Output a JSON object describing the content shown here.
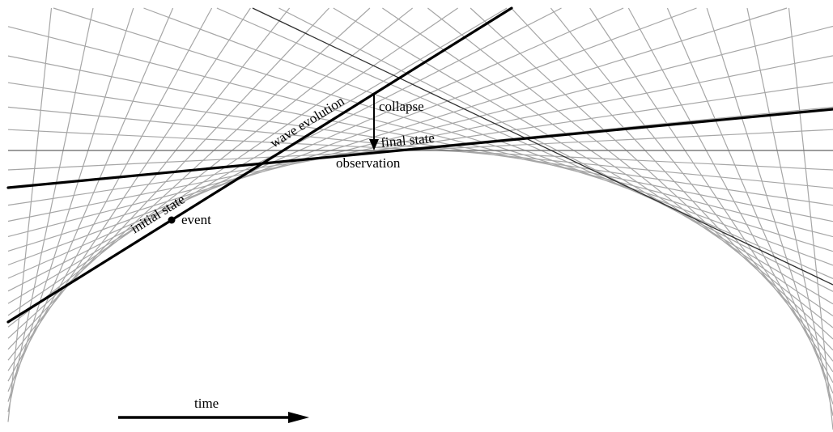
{
  "labels": {
    "wave_evolution": "wave evolution",
    "collapse": "collapse",
    "final_state": "final state",
    "observation": "observation",
    "initial_state": "initial state",
    "event": "event",
    "time": "time"
  },
  "colors": {
    "grid": "#a6a6a6",
    "reference_line": "#707070",
    "ink": "#000000"
  }
}
